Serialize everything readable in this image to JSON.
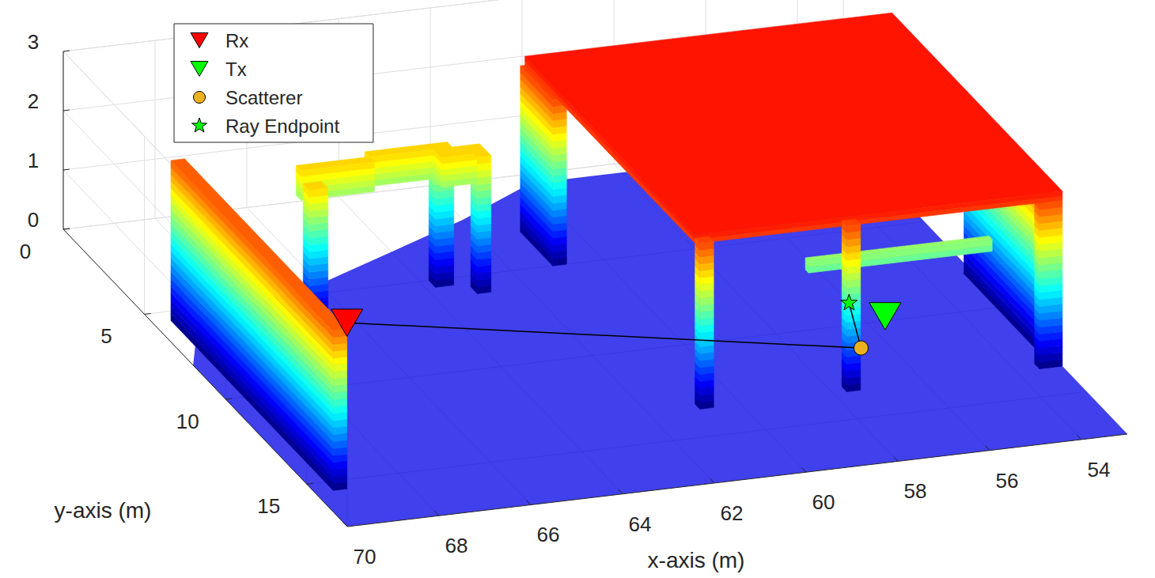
{
  "chart_data": {
    "type": "scatter3d",
    "x_label": "x-axis (m)",
    "y_label": "y-axis (m)",
    "xlim": [
      53,
      70
    ],
    "xticks": [
      54,
      56,
      58,
      60,
      62,
      64,
      66,
      68,
      70
    ],
    "ylim": [
      0,
      17.5
    ],
    "yticks": [
      0,
      5,
      10,
      15
    ],
    "zlim": [
      0,
      3
    ],
    "zticks": [
      0,
      1,
      2,
      3
    ],
    "grid": true,
    "legend": "upper left",
    "series": [
      {
        "name": "Rx",
        "type": "scatter",
        "marker": "triangle-down",
        "color": "#ff0000",
        "x": [
          69.3
        ],
        "y": [
          15.5
        ],
        "z": [
          2.8
        ]
      },
      {
        "name": "Tx",
        "type": "scatter",
        "marker": "triangle-down",
        "color": "#00ff00",
        "x": [
          57.2
        ],
        "y": [
          14.45
        ],
        "z": [
          1.5
        ]
      },
      {
        "name": "Scatterer",
        "type": "scatter",
        "marker": "circle",
        "color": "#edb120",
        "x": [
          57.6
        ],
        "y": [
          14.1
        ],
        "z": [
          0.9
        ]
      },
      {
        "name": "Ray Endpoint",
        "type": "scatter",
        "marker": "star",
        "color": "#00ff00",
        "x": [
          57.77
        ],
        "y": [
          13.84
        ],
        "z": [
          1.6
        ]
      },
      {
        "type": "line",
        "color": "#000000",
        "x": [
          69.3,
          57.6,
          57.77
        ],
        "y": [
          15.5,
          14.1,
          13.84
        ],
        "z": [
          2.8,
          0.9,
          1.6
        ]
      }
    ],
    "floor": [
      [
        53,
        0.5,
        0
      ],
      [
        60,
        0.5,
        0
      ],
      [
        62,
        2,
        0
      ],
      [
        66,
        4.5,
        0
      ],
      [
        69,
        5.5,
        0
      ],
      [
        70,
        8,
        0
      ],
      [
        70,
        17.5,
        0
      ],
      [
        53,
        17.5,
        0
      ]
    ],
    "boxes": [
      [
        [
          69.3,
          69.6
        ],
        [
          5.5,
          15.5
        ],
        [
          0,
          2.7
        ]
      ],
      [
        [
          66.6,
          67
        ],
        [
          6.3,
          6.7
        ],
        [
          0,
          2.3
        ]
      ],
      [
        [
          65.2,
          66.8
        ],
        [
          5.3,
          5.6
        ],
        [
          1.8,
          2.3
        ]
      ],
      [
        [
          63.8,
          65.2
        ],
        [
          5.0,
          5.3
        ],
        [
          1.8,
          2.3
        ]
      ],
      [
        [
          62.8,
          63.8
        ],
        [
          5.3,
          5.8
        ],
        [
          1.8,
          2.3
        ]
      ],
      [
        [
          63.4,
          63.8
        ],
        [
          5.0,
          5.4
        ],
        [
          0,
          2.3
        ]
      ],
      [
        [
          62.8,
          63.1
        ],
        [
          5.6,
          6.0
        ],
        [
          0,
          2.3
        ]
      ],
      [
        [
          60.8,
          61.1
        ],
        [
          3,
          5
        ],
        [
          0,
          2.8
        ]
      ],
      [
        [
          53,
          61
        ],
        [
          3,
          13.5
        ],
        [
          2.8,
          2.95
        ]
      ],
      [
        [
          60.6,
          60.9
        ],
        [
          13.2,
          13.5
        ],
        [
          0,
          2.8
        ]
      ],
      [
        [
          57.4,
          57.7
        ],
        [
          13.2,
          13.5
        ],
        [
          0,
          2.8
        ]
      ],
      [
        [
          53.2,
          53.5
        ],
        [
          13.2,
          13.5
        ],
        [
          0,
          2.8
        ]
      ],
      [
        [
          53,
          53.2
        ],
        [
          8,
          13.5
        ],
        [
          0,
          2.8
        ]
      ],
      [
        [
          54,
          58
        ],
        [
          11.8,
          12
        ],
        [
          1.6,
          1.8
        ]
      ]
    ]
  }
}
